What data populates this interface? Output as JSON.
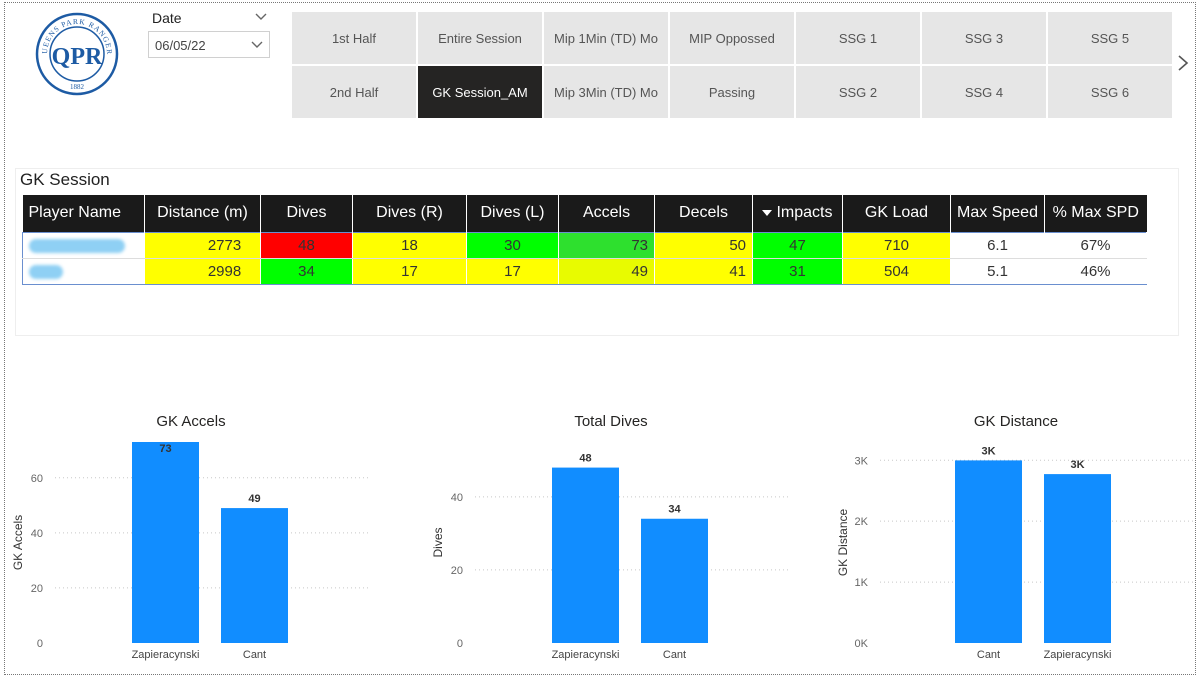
{
  "logo": {
    "ring_text": "QUEENS PARK RANGERS",
    "monogram": "QPR",
    "year": "1882"
  },
  "date_slicer": {
    "label": "Date",
    "value": "06/05/22"
  },
  "tabs": [
    {
      "label": "1st Half",
      "active": false
    },
    {
      "label": "Entire Session",
      "active": false
    },
    {
      "label": "Mip 1Min (TD) Mo",
      "active": false
    },
    {
      "label": "MIP Oppossed",
      "active": false
    },
    {
      "label": "SSG 1",
      "active": false
    },
    {
      "label": "SSG 3",
      "active": false
    },
    {
      "label": "SSG 5",
      "active": false
    },
    {
      "label": "2nd Half",
      "active": false
    },
    {
      "label": "GK Session_AM",
      "active": true
    },
    {
      "label": "Mip 3Min (TD) Mo",
      "active": false
    },
    {
      "label": "Passing",
      "active": false
    },
    {
      "label": "SSG 2",
      "active": false
    },
    {
      "label": "SSG 4",
      "active": false
    },
    {
      "label": "SSG 6",
      "active": false
    }
  ],
  "table": {
    "title": "GK Session",
    "columns": [
      "Player Name",
      "Distance (m)",
      "Dives",
      "Dives (R)",
      "Dives (L)",
      "Accels",
      "Decels",
      "Impacts",
      "GK Load",
      "Max Speed",
      "% Max SPD"
    ],
    "sorted_column": "Impacts",
    "rows": [
      {
        "cells": [
          "",
          "2773",
          "48",
          "18",
          "30",
          "73",
          "50",
          "47",
          "710",
          "6.1",
          "67%"
        ],
        "colors": [
          "white",
          "yel",
          "red",
          "yel",
          "grn",
          "lgrn",
          "yel",
          "grn",
          "yel",
          "white",
          "white"
        ]
      },
      {
        "cells": [
          "",
          "2998",
          "34",
          "17",
          "17",
          "49",
          "41",
          "31",
          "504",
          "5.1",
          "46%"
        ],
        "colors": [
          "white",
          "yel",
          "grn",
          "yel",
          "yel",
          "yg",
          "yel",
          "grn",
          "yel",
          "white",
          "white"
        ]
      }
    ]
  },
  "chart_data": [
    {
      "type": "bar",
      "title": "GK Accels",
      "ylabel": "GK Accels",
      "categories": [
        "Zapieracynski",
        "Cant"
      ],
      "values": [
        73,
        49
      ],
      "data_labels": [
        "73",
        "49"
      ],
      "ylim": [
        0,
        73
      ],
      "yticks": [
        0,
        20,
        40,
        60
      ],
      "ytick_labels": [
        "0",
        "20",
        "40",
        "60"
      ],
      "bar_color": "#118dff"
    },
    {
      "type": "bar",
      "title": "Total Dives",
      "ylabel": "Dives",
      "categories": [
        "Zapieracynski",
        "Cant"
      ],
      "values": [
        48,
        34
      ],
      "data_labels": [
        "48",
        "34"
      ],
      "ylim": [
        0,
        55
      ],
      "yticks": [
        0,
        20,
        40
      ],
      "ytick_labels": [
        "0",
        "20",
        "40"
      ],
      "bar_color": "#118dff"
    },
    {
      "type": "bar",
      "title": "GK Distance",
      "ylabel": "GK Distance",
      "categories": [
        "Cant",
        "Zapieracynski"
      ],
      "values": [
        2998,
        2773
      ],
      "data_labels": [
        "3K",
        "3K"
      ],
      "ylim": [
        0,
        3300
      ],
      "yticks": [
        0,
        1000,
        2000,
        3000
      ],
      "ytick_labels": [
        "0K",
        "1K",
        "2K",
        "3K"
      ],
      "bar_color": "#118dff"
    }
  ]
}
